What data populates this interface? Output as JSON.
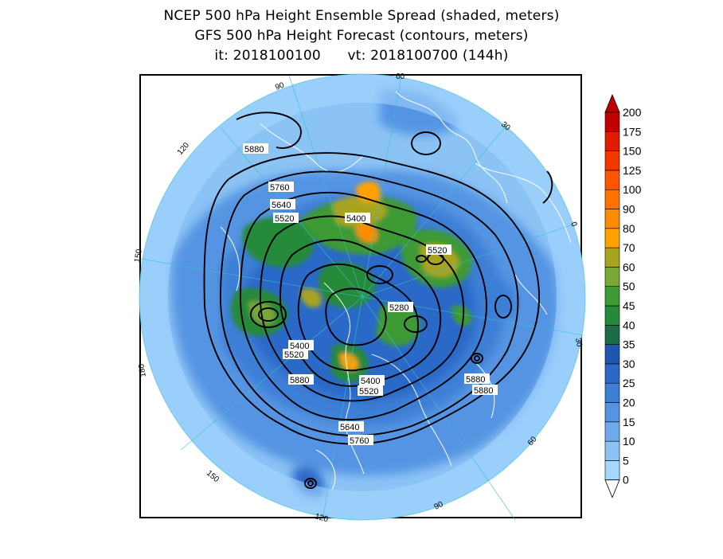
{
  "title": {
    "line1": "NCEP 500 hPa Height Ensemble Spread (shaded, meters)",
    "line2": "GFS 500 hPa Height Forecast (contours, meters)",
    "line3": "it: 2018100100      vt: 2018100700 (144h)"
  },
  "contour_labels": [
    "5880",
    "5760",
    "5640",
    "5520",
    "5400",
    "5520",
    "5280",
    "5400",
    "5520",
    "5880",
    "5400",
    "5520",
    "5880",
    "5880",
    "5640",
    "5760"
  ],
  "longitude_labels": [
    "60",
    "90",
    "30",
    "120",
    "0",
    "150",
    "30",
    "180",
    "150",
    "60",
    "120",
    "90"
  ],
  "colorbar": {
    "labels": [
      "0",
      "5",
      "10",
      "15",
      "20",
      "25",
      "30",
      "35",
      "40",
      "45",
      "50",
      "60",
      "70",
      "80",
      "90",
      "100",
      "125",
      "150",
      "175",
      "200"
    ],
    "colors": [
      "#a6d7ff",
      "#8cc3f5",
      "#6fabec",
      "#5594e2",
      "#3c7fd6",
      "#2b69c8",
      "#1f56b0",
      "#1d6b48",
      "#268a3a",
      "#3d9a34",
      "#79a838",
      "#a8a420",
      "#ffa200",
      "#ff8b00",
      "#ff7200",
      "#ff5500",
      "#f23800",
      "#e01c00",
      "#c00000"
    ]
  }
}
